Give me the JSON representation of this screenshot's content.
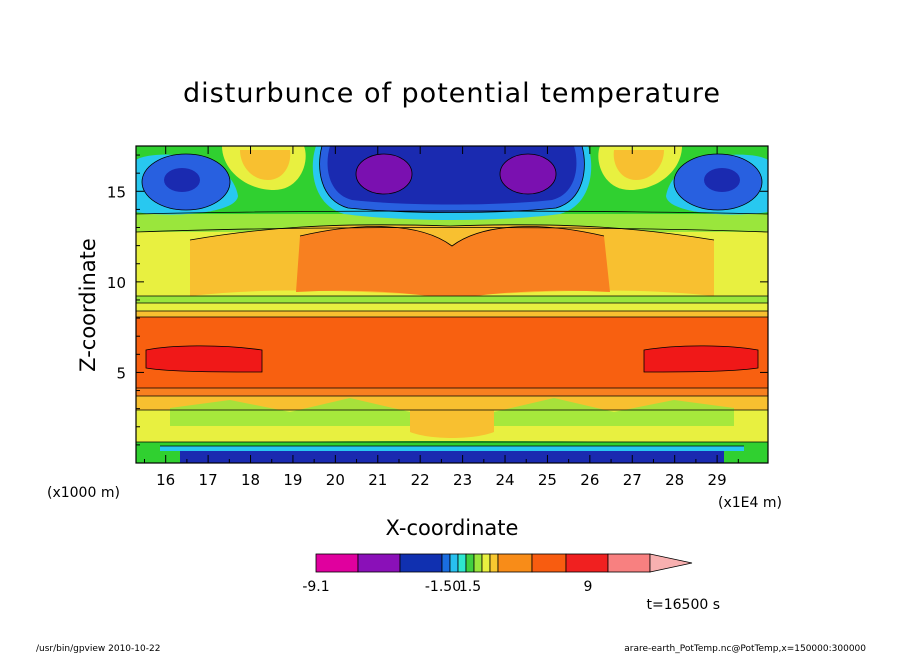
{
  "chart_data": {
    "type": "heatmap",
    "title": "disturbunce of potential temperature",
    "xlabel": "X-coordinate",
    "ylabel": "Z-coordinate",
    "x_unit_note": "(x1E4 m)",
    "y_unit_note": "(x1000 m)",
    "xlim": [
      15.3,
      30.2
    ],
    "ylim": [
      0,
      17.5
    ],
    "x_ticks": [
      "16",
      "17",
      "18",
      "19",
      "20",
      "21",
      "22",
      "23",
      "24",
      "25",
      "26",
      "27",
      "28",
      "29"
    ],
    "y_ticks": [
      "5",
      "10",
      "15"
    ],
    "time_label": "t=16500 s",
    "colorbar": {
      "labels": [
        "-9.1",
        "-1.50",
        "1.5",
        "9"
      ],
      "colors": [
        "#e0009e",
        "#8a10b8",
        "#1030b0",
        "#1a6de0",
        "#28c0f0",
        "#2ee8d0",
        "#40d040",
        "#9ae63c",
        "#e8f040",
        "#f8c830",
        "#f88c18",
        "#f85c10",
        "#f02020",
        "#f88080",
        "#f8b0b0"
      ]
    },
    "field_colors": {
      "deep_negative": "#7a10b0",
      "strong_negative": "#1a2ab0",
      "negative": "#2860e0",
      "weak_negative": "#28c8f0",
      "near_zero": "#30d030",
      "weak_positive": "#e8f040",
      "positive": "#f8c030",
      "stronger_positive": "#f88020",
      "strong_positive": "#f86010",
      "max_positive": "#f01818"
    }
  },
  "footer": {
    "left": "/usr/bin/gpview   2010-10-22",
    "right": "arare-earth_PotTemp.nc@PotTemp,x=150000:300000"
  }
}
